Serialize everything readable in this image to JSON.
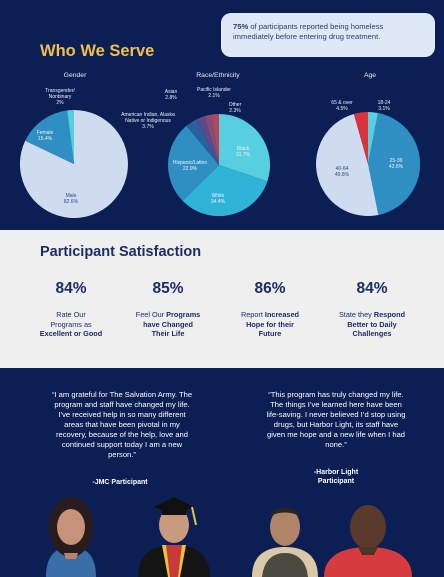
{
  "callout": {
    "highlight": "75%",
    "text": " of participants reported being homeless immediately before entering drug treatment."
  },
  "section_title": "Who We Serve",
  "charts": {
    "gender": {
      "label": "Gender",
      "slices": [
        {
          "name": "Transgender/ Nonbinary",
          "value": "2%"
        },
        {
          "name": "Female",
          "value": "15.4%"
        },
        {
          "name": "Male",
          "value": "82.6%"
        }
      ]
    },
    "race": {
      "label": "Race/Ethnicity",
      "slices": [
        {
          "name": "Black",
          "value": "31.7%"
        },
        {
          "name": "White",
          "value": "34.4%"
        },
        {
          "name": "Hispanic/Latino",
          "value": "22.9%"
        },
        {
          "name": "American Indian, Alaska Native or Indigenous",
          "value": "3.7%"
        },
        {
          "name": "Asian",
          "value": "2.8%"
        },
        {
          "name": "Pacific Islander",
          "value": "2.1%"
        },
        {
          "name": "Other",
          "value": "2.3%"
        }
      ]
    },
    "age": {
      "label": "Age",
      "slices": [
        {
          "name": "18-24",
          "value": "3.1%"
        },
        {
          "name": "25-39",
          "value": "42.6%"
        },
        {
          "name": "40-64",
          "value": "49.8%"
        },
        {
          "name": "65 & over",
          "value": "4.5%"
        }
      ]
    }
  },
  "colors": {
    "navy": "#0b1f54",
    "gold": "#f2c04a",
    "pie_light": "#cfdcf0",
    "pie_blue": "#2f8fc2",
    "pie_cyan": "#58cfe0",
    "pie_red": "#d9343b"
  },
  "satisfaction": {
    "title": "Participant Satisfaction",
    "stats": [
      {
        "pct": "84%",
        "line1": "Rate Our",
        "line2": "Programs as",
        "line3": "Excellent or Good"
      },
      {
        "pct": "85%",
        "line1a": "Feel Our ",
        "line1b": "Programs",
        "line2": "have Changed",
        "line3": "Their Life"
      },
      {
        "pct": "86%",
        "line1a": "Report ",
        "line1b": "Increased",
        "line2": "Hope for their",
        "line3": "Future"
      },
      {
        "pct": "84%",
        "line1a": "State they ",
        "line1b": "Respond",
        "line2": "Better to Daily",
        "line3": "Challenges"
      }
    ]
  },
  "quotes": [
    {
      "lines": [
        "“I am grateful for The Salvation Army. The",
        "program and staff have changed my life.",
        "I’ve received help in so many different",
        "areas that have been pivotal in my",
        "recovery, because of the help, love and",
        "continued support today I am a new",
        "person.”"
      ],
      "attribution": "-JMC Participant"
    },
    {
      "lines": [
        "“This program has truly changed my life.",
        "The things I’ve learned here have been",
        "life-saving. I never believed I’d stop using",
        "drugs, but Harbor Light, its staff have",
        "given me hope and a new life when I had",
        "none.”"
      ],
      "attribution_line1": "-Harbor Light",
      "attribution_line2": "Participant"
    }
  ]
}
